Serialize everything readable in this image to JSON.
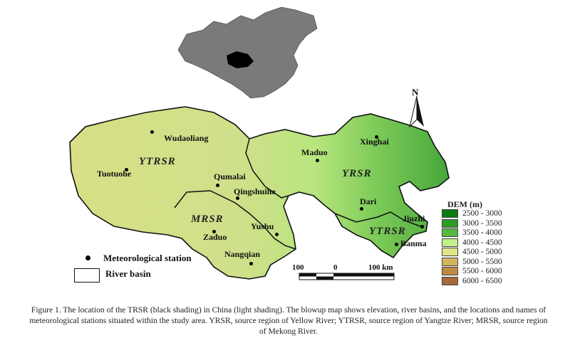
{
  "inset_map": {
    "description_label": "China",
    "china_color": "#7a7a7a",
    "trsr_color": "#000000"
  },
  "north_arrow": {
    "label": "N"
  },
  "regions": [
    {
      "label": "YTRSR"
    },
    {
      "label": "YRSR"
    },
    {
      "label": "MRSR"
    },
    {
      "label": "YTRSR"
    }
  ],
  "stations": [
    {
      "name": "Wudaoliang"
    },
    {
      "name": "Tuotuohe"
    },
    {
      "name": "Qumalai"
    },
    {
      "name": "Qingshuihe"
    },
    {
      "name": "Maduo"
    },
    {
      "name": "Xinghai"
    },
    {
      "name": "Dari"
    },
    {
      "name": "Yushu"
    },
    {
      "name": "Zaduo"
    },
    {
      "name": "Nangqian"
    },
    {
      "name": "Jiuzhi"
    },
    {
      "name": "Banma"
    }
  ],
  "legend": {
    "station_label": "Meteorological station",
    "basin_label": "River basin"
  },
  "scale_bar": {
    "left": "100",
    "middle": "0",
    "right": "100 km"
  },
  "dem_legend": {
    "title": "DEM (m)",
    "classes": [
      {
        "range": "2500 - 3000",
        "color": "#0a7a12"
      },
      {
        "range": "3000 - 3500",
        "color": "#2f9a28"
      },
      {
        "range": "3500 - 4000",
        "color": "#58b940"
      },
      {
        "range": "4000 - 4500",
        "color": "#c4ef8a"
      },
      {
        "range": "4500 - 5000",
        "color": "#dfe68a"
      },
      {
        "range": "5000 - 5500",
        "color": "#d2b45a"
      },
      {
        "range": "5500 - 6000",
        "color": "#bf8a44"
      },
      {
        "range": "6000 - 6500",
        "color": "#a8683a"
      }
    ]
  },
  "caption": "Figure 1. The location of the TRSR (black shading) in China (light shading). The blowup map shows elevation, river basins, and the locations and names of meteorological stations situated within the study area. YRSR, source region of Yellow River; YTRSR, source region of Yangtze River; MRSR, source region of Mekong River."
}
